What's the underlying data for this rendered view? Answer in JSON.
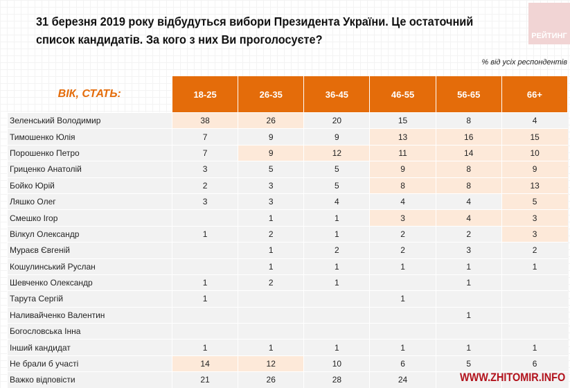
{
  "title": "31 березня 2019 року відбудуться вибори Президента України. Це остаточний список кандидатів. За кого з них Ви проголосуєте?",
  "logo_text": "РЕЙТИНГ",
  "subtitle": "% від усіх респондентів",
  "table": {
    "row_header": "ВІК, СТАТЬ:",
    "columns": [
      "18-25",
      "26-35",
      "36-45",
      "46-55",
      "56-65",
      "66+"
    ],
    "rows": [
      {
        "name": "Зеленський Володимир",
        "values": [
          "38",
          "26",
          "20",
          "15",
          "8",
          "4"
        ],
        "hl": [
          0,
          1
        ]
      },
      {
        "name": "Тимошенко Юлія",
        "values": [
          "7",
          "9",
          "9",
          "13",
          "16",
          "15"
        ],
        "hl": [
          3,
          4,
          5
        ]
      },
      {
        "name": "Порошенко Петро",
        "values": [
          "7",
          "9",
          "12",
          "11",
          "14",
          "10"
        ],
        "hl": [
          1,
          2,
          3,
          4,
          5
        ]
      },
      {
        "name": "Гриценко Анатолій",
        "values": [
          "3",
          "5",
          "5",
          "9",
          "8",
          "9"
        ],
        "hl": [
          3,
          4,
          5
        ]
      },
      {
        "name": "Бойко Юрій",
        "values": [
          "2",
          "3",
          "5",
          "8",
          "8",
          "13"
        ],
        "hl": [
          3,
          4,
          5
        ]
      },
      {
        "name": "Ляшко Олег",
        "values": [
          "3",
          "3",
          "4",
          "4",
          "4",
          "5"
        ],
        "hl": [
          5
        ]
      },
      {
        "name": "Смешко Ігор",
        "values": [
          "",
          "1",
          "1",
          "3",
          "4",
          "3"
        ],
        "hl": [
          3,
          4,
          5
        ]
      },
      {
        "name": "Вілкул Олександр",
        "values": [
          "1",
          "2",
          "1",
          "2",
          "2",
          "3"
        ],
        "hl": [
          5
        ]
      },
      {
        "name": "Мураєв Євгеній",
        "values": [
          "",
          "1",
          "2",
          "2",
          "3",
          "2"
        ],
        "hl": []
      },
      {
        "name": "Кошулинський Руслан",
        "values": [
          "",
          "1",
          "1",
          "1",
          "1",
          "1"
        ],
        "hl": []
      },
      {
        "name": "Шевченко Олександр",
        "values": [
          "1",
          "2",
          "1",
          "",
          "1",
          ""
        ],
        "hl": []
      },
      {
        "name": "Тарута Сергій",
        "values": [
          "1",
          "",
          "",
          "1",
          "",
          ""
        ],
        "hl": []
      },
      {
        "name": "Наливайченко Валентин",
        "values": [
          "",
          "",
          "",
          "",
          "1",
          ""
        ],
        "hl": []
      },
      {
        "name": "Богословська Інна",
        "values": [
          "",
          "",
          "",
          "",
          "",
          ""
        ],
        "hl": []
      },
      {
        "name": "Інший кандидат",
        "values": [
          "1",
          "1",
          "1",
          "1",
          "1",
          "1"
        ],
        "hl": []
      },
      {
        "name": "Не брали б участі",
        "values": [
          "14",
          "12",
          "10",
          "6",
          "5",
          "6"
        ],
        "hl": [
          0,
          1
        ]
      },
      {
        "name": "Важко відповісти",
        "values": [
          "21",
          "26",
          "28",
          "24",
          "",
          ""
        ],
        "hl": []
      }
    ]
  },
  "watermark": "WWW.ZHITOMIR.INFO",
  "colors": {
    "header": "#e46c0a",
    "highlight": "#fde9d9",
    "row": "#f2f2f2"
  }
}
